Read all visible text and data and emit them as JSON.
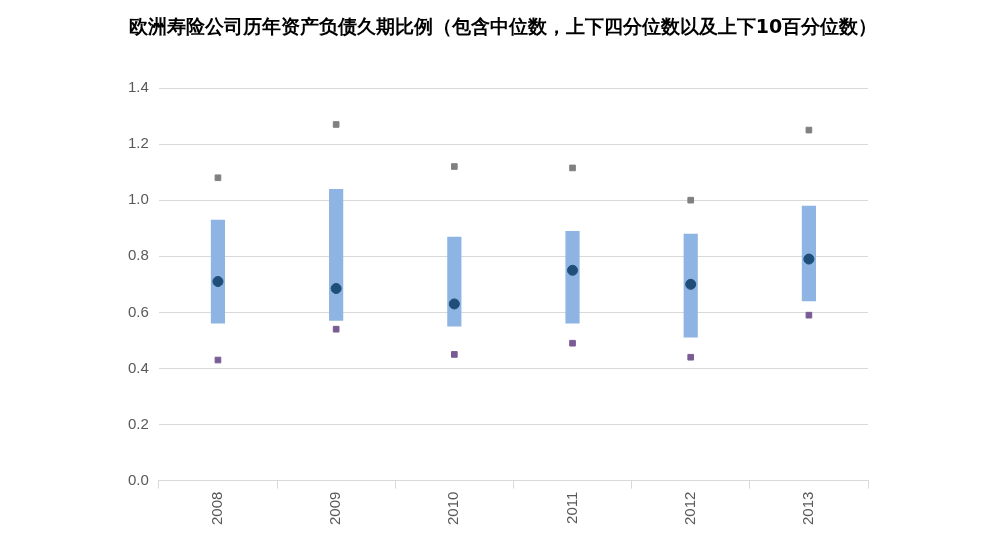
{
  "chart_data": {
    "type": "bar",
    "title": "欧洲寿险公司历年资产负债久期比例（包含中位数，上下四分位数以及上下10百分位数）",
    "categories": [
      "2008",
      "2009",
      "2010",
      "2011",
      "2012",
      "2013"
    ],
    "series": [
      {
        "color": "#8db4e2",
        "base": [
          0.56,
          0.57,
          0.55,
          0.56,
          0.51,
          0.64
        ],
        "values": [
          0.37,
          0.47,
          0.32,
          0.33,
          0.37,
          0.34
        ]
      },
      {
        "type": "scatter",
        "color": "#1f4e79",
        "marker": "circle",
        "values": [
          0.71,
          0.685,
          0.63,
          0.75,
          0.7,
          0.79
        ]
      },
      {
        "type": "scatter",
        "color": "#808080",
        "marker": "square",
        "values": [
          1.08,
          1.27,
          1.12,
          1.115,
          1.0,
          1.25
        ]
      },
      {
        "type": "scatter",
        "color": "#7a5c94",
        "marker": "square",
        "values": [
          0.43,
          0.54,
          0.45,
          0.49,
          0.44,
          0.59
        ]
      }
    ],
    "ylim": [
      0,
      1.4
    ],
    "yticks": [
      {
        "value": 0,
        "label": "0.0"
      },
      {
        "value": 0.2,
        "label": "0.2"
      },
      {
        "value": 0.4,
        "label": "0.4"
      },
      {
        "value": 0.6,
        "label": "0.6"
      },
      {
        "value": 0.8,
        "label": "0.8"
      },
      {
        "value": 1.0,
        "label": "1.0"
      },
      {
        "value": 1.2,
        "label": "1.2"
      },
      {
        "value": 1.4,
        "label": "1.4"
      }
    ],
    "grid": "y"
  }
}
